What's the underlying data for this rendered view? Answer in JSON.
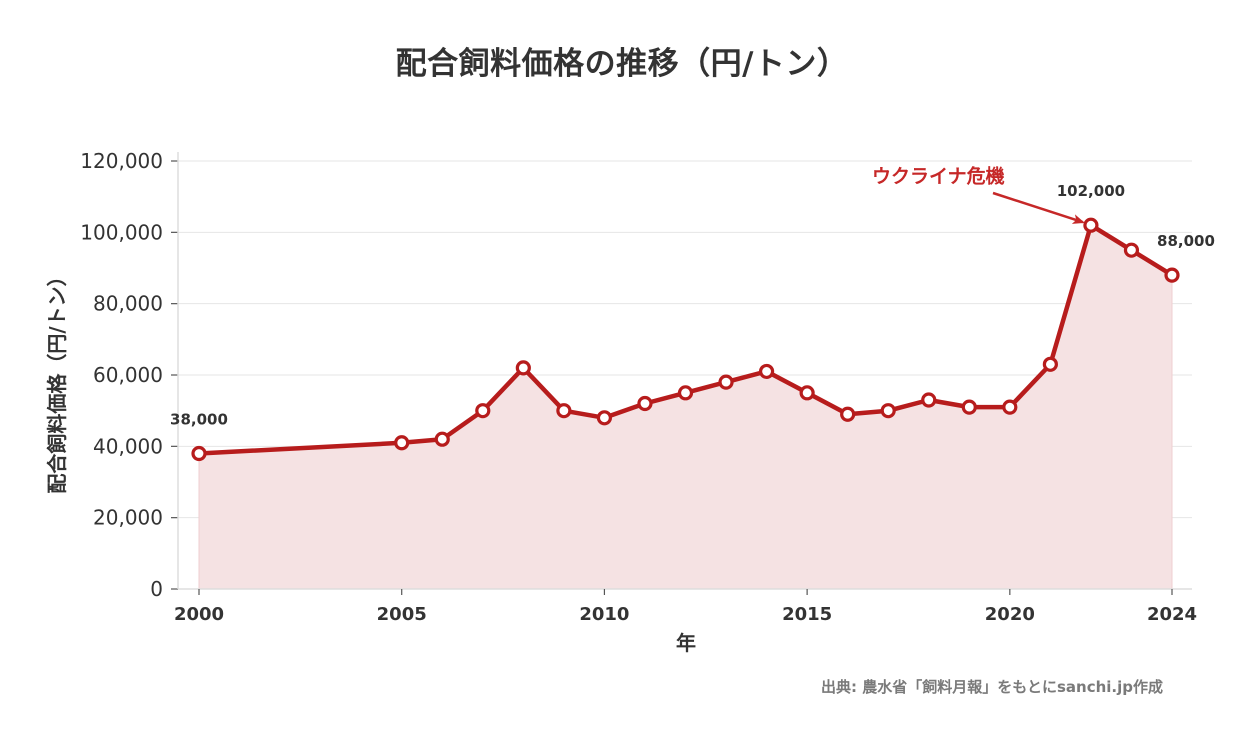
{
  "page": {
    "title": "配合飼料価格の推移（円/トン）",
    "source": "出典: 農水省「飼料月報」をもとにsanchi.jp作成"
  },
  "colors": {
    "line": "#b71c1c",
    "fill": "#f5e2e3",
    "annotation": "#c62828",
    "grid": "#e6e6e6",
    "spine": "#dddddd",
    "text": "#333333",
    "source_text": "#7a7a7a"
  },
  "chart_data": {
    "type": "line",
    "title": "配合飼料価格の推移（円/トン）",
    "xlabel": "年",
    "ylabel": "配合飼料価格（円/トン）",
    "x": [
      2000,
      2005,
      2006,
      2007,
      2008,
      2009,
      2010,
      2011,
      2012,
      2013,
      2014,
      2015,
      2016,
      2017,
      2018,
      2019,
      2020,
      2021,
      2022,
      2023,
      2024
    ],
    "series": [
      {
        "name": "配合飼料価格",
        "values": [
          38000,
          41000,
          42000,
          50000,
          62000,
          50000,
          48000,
          52000,
          55000,
          58000,
          61000,
          55000,
          49000,
          50000,
          53000,
          51000,
          51000,
          63000,
          102000,
          95000,
          88000
        ],
        "style": "line+markers+area"
      }
    ],
    "xlim": [
      1999.5,
      2024.5
    ],
    "ylim": [
      0,
      120000
    ],
    "xticks": [
      2000,
      2005,
      2010,
      2015,
      2020,
      2024
    ],
    "xtick_labels": [
      "2000",
      "2005",
      "2010",
      "2015",
      "2020",
      "2024"
    ],
    "yticks": [
      0,
      20000,
      40000,
      60000,
      80000,
      100000,
      120000
    ],
    "ytick_labels": [
      "0",
      "20,000",
      "40,000",
      "60,000",
      "80,000",
      "100,000",
      "120,000"
    ],
    "grid": true,
    "legend": null,
    "data_labels": [
      {
        "x": 2000,
        "value": 38000,
        "text": "38,000"
      },
      {
        "x": 2022,
        "value": 102000,
        "text": "102,000"
      },
      {
        "x": 2024,
        "value": 88000,
        "text": "88,000"
      }
    ],
    "annotations": [
      {
        "text": "ウクライナ危機",
        "target_x": 2022,
        "target_value": 102000,
        "text_x": 2016.6,
        "text_value": 116000
      }
    ]
  }
}
